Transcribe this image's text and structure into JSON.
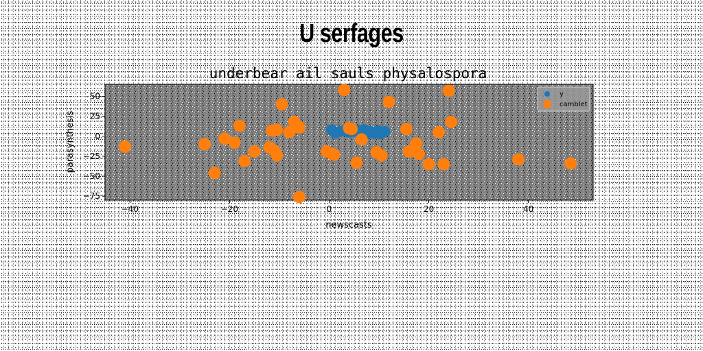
{
  "page": {
    "title": "U serfages"
  },
  "chart_data": {
    "type": "scatter",
    "title": "underbear ail sauls physalospora",
    "xlabel": "newscasts",
    "ylabel": "parasynthesis",
    "xlim": [
      -45,
      53
    ],
    "ylim": [
      -80,
      65
    ],
    "xticks": [
      -40,
      -20,
      0,
      20,
      40
    ],
    "yticks": [
      -75,
      -50,
      -25,
      0,
      25,
      50
    ],
    "grid": false,
    "legend_position": "top-right",
    "series": [
      {
        "name": "y",
        "color": "#1f77b4",
        "points": [
          [
            0.5,
            8
          ],
          [
            1.2,
            4
          ],
          [
            2.2,
            6
          ],
          [
            3.0,
            7
          ],
          [
            4.0,
            5
          ],
          [
            5.0,
            6
          ],
          [
            6.0,
            7
          ],
          [
            7.0,
            8
          ],
          [
            7.5,
            3
          ],
          [
            8.2,
            6
          ],
          [
            9.0,
            4
          ],
          [
            9.8,
            7
          ],
          [
            10.3,
            3
          ],
          [
            10.8,
            5
          ],
          [
            11.2,
            6
          ]
        ]
      },
      {
        "name": "camblet",
        "color": "#ff7f0e",
        "points": [
          [
            -41,
            -13
          ],
          [
            -25,
            -10
          ],
          [
            -23,
            -46
          ],
          [
            -21,
            -3
          ],
          [
            -19,
            -8
          ],
          [
            -18,
            13
          ],
          [
            -17,
            -31
          ],
          [
            -15,
            -19
          ],
          [
            -12,
            -14
          ],
          [
            -11.5,
            7
          ],
          [
            -11,
            -18
          ],
          [
            -10.5,
            8
          ],
          [
            -10.5,
            -24
          ],
          [
            -9.5,
            40
          ],
          [
            -8,
            5
          ],
          [
            -7,
            18
          ],
          [
            -6.5,
            12
          ],
          [
            -6,
            11
          ],
          [
            -6,
            -76
          ],
          [
            -0.5,
            -19
          ],
          [
            0.5,
            -22
          ],
          [
            1,
            -23
          ],
          [
            3,
            58
          ],
          [
            4,
            10
          ],
          [
            4.5,
            9
          ],
          [
            5.5,
            -33
          ],
          [
            6.5,
            -4
          ],
          [
            9.5,
            -20
          ],
          [
            10.5,
            -24
          ],
          [
            12,
            43
          ],
          [
            15.5,
            9
          ],
          [
            16,
            -19
          ],
          [
            17,
            -17
          ],
          [
            17.5,
            -9
          ],
          [
            18,
            -22
          ],
          [
            20,
            -35
          ],
          [
            22,
            5
          ],
          [
            23,
            -35
          ],
          [
            24,
            57
          ],
          [
            24.5,
            18
          ],
          [
            38,
            -29
          ],
          [
            48.5,
            -34
          ]
        ]
      }
    ]
  }
}
